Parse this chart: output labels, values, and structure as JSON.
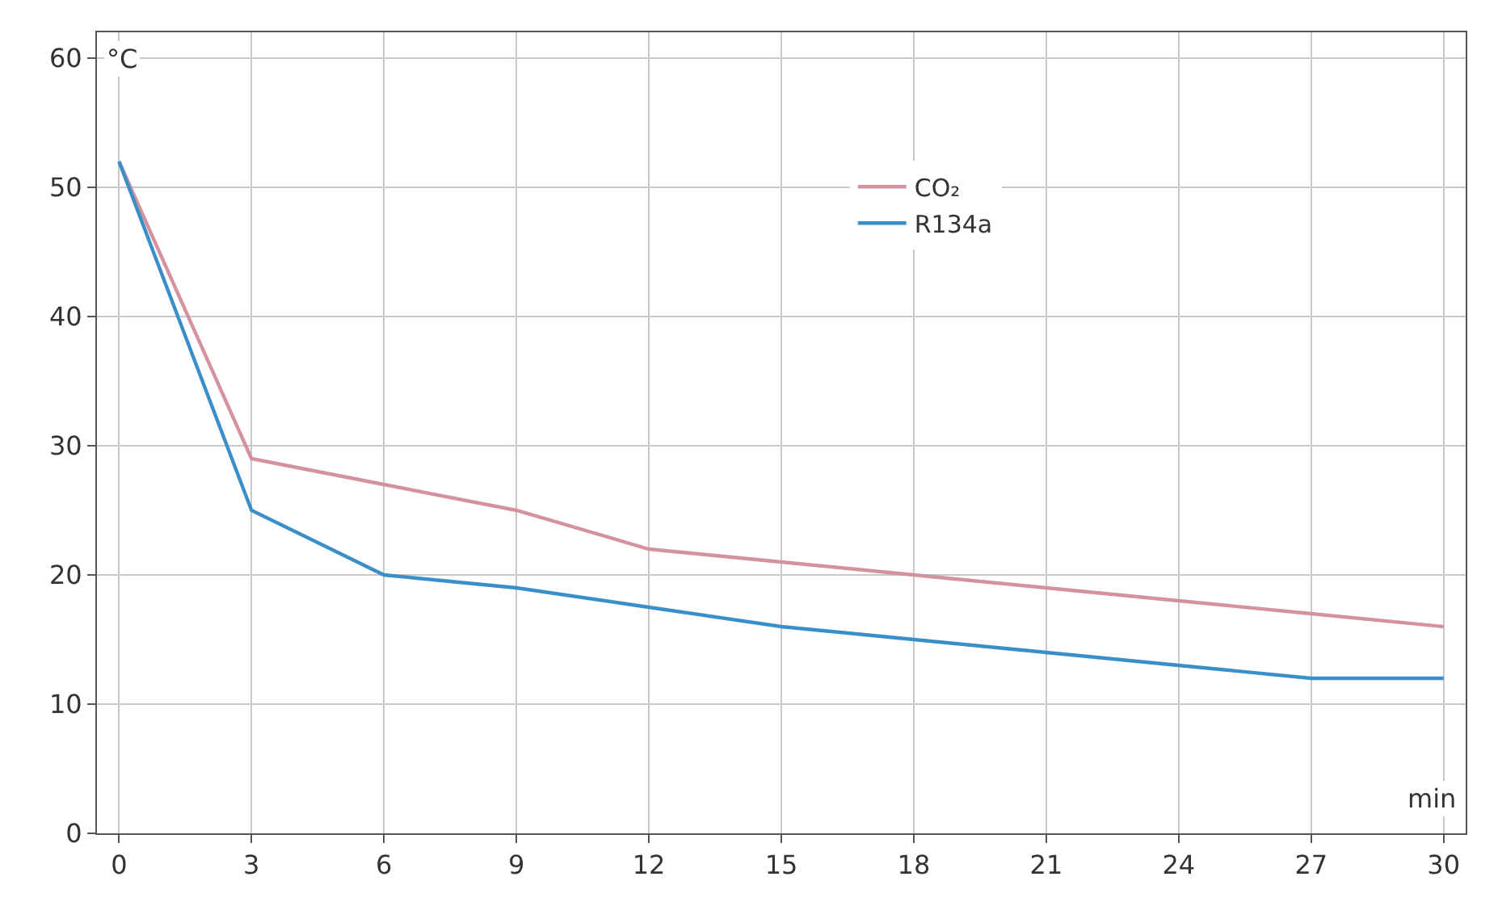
{
  "chart_data": {
    "type": "line",
    "xlabel": "min",
    "ylabel": "°C",
    "x": [
      0,
      3,
      6,
      9,
      12,
      15,
      18,
      21,
      24,
      27,
      30
    ],
    "series": [
      {
        "name": "CO₂",
        "color": "#d4929f",
        "values": [
          52,
          29,
          27,
          25,
          22,
          21,
          20,
          19,
          18,
          17,
          16
        ]
      },
      {
        "name": "R134a",
        "color": "#3a8fc9",
        "values": [
          52,
          25,
          20,
          19,
          17.5,
          16,
          15,
          14,
          13,
          12,
          12
        ]
      }
    ],
    "xlim": [
      -0.5,
      30.5
    ],
    "xticks": [
      0,
      3,
      6,
      9,
      12,
      15,
      18,
      21,
      24,
      27,
      30
    ],
    "ylim": [
      0,
      62
    ],
    "yticks": [
      0,
      10,
      20,
      30,
      40,
      50,
      60
    ],
    "grid": true,
    "legend": "top right",
    "marker": "none",
    "line_style": "solid"
  }
}
